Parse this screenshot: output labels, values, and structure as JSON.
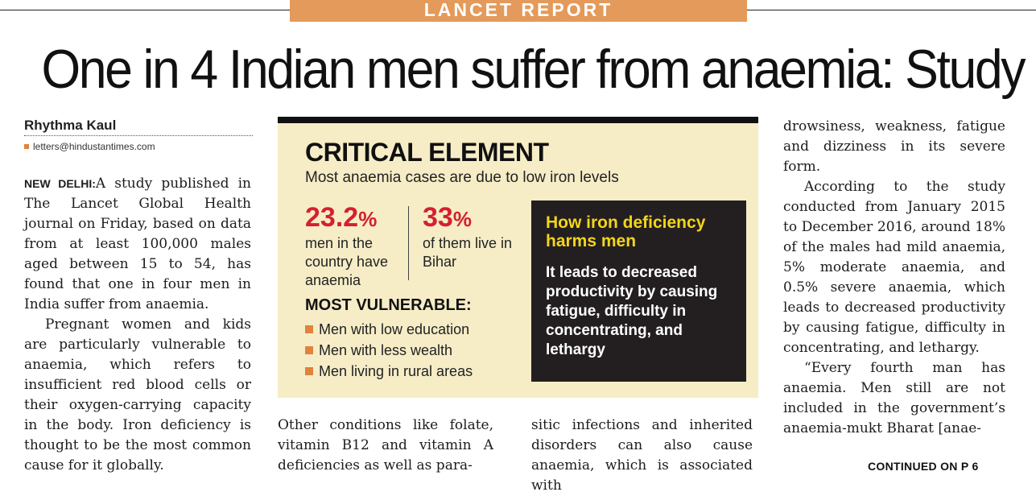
{
  "kicker": "LANCET REPORT",
  "headline": "One in 4 Indian men suffer from anaemia: Study",
  "byline": {
    "author": "Rhythma Kaul",
    "email": "letters@hindustantimes.com"
  },
  "body": {
    "dateline": "NEW DELHI:",
    "col1_p1": "A study published in The Lancet Global Health journal on Friday, based on data from at least 100,000 males aged between 15 to 54, has found that one in four men in India suffer from anaemia.",
    "col1_p2": "Pregnant women and kids are particularly vulnerable to anaemia, which refers to insufficient red blood cells or their oxygen-carrying capacity in the body. Iron deficiency is thought to be the most common cause for it globally.",
    "col2_p1": "Other conditions like folate, vitamin B12 and vitamin A deficiencies as well as para-",
    "col3_p1": "sitic infections and inherited disorders can also cause anaemia, which is associated with",
    "col4_p1": "drowsiness, weakness, fatigue and dizziness in its severe form.",
    "col4_p2": "According to the study conducted from January 2015 to December 2016, around 18% of the males had mild anaemia, 5% moderate anaemia, and 0.5% severe anaemia, which leads to decreased productivity by causing fatigue, difficulty in concentrating, and lethargy.",
    "col4_p3": "“Every fourth man has anaemia. Men still are not included in the government’s anaemia-mukt Bharat [anae-",
    "continued": "CONTINUED ON P 6"
  },
  "factbox": {
    "title": "CRITICAL ELEMENT",
    "subtitle": "Most anaemia cases are due to low iron levels",
    "stat1": {
      "value": "23.2",
      "unit": "%",
      "label": "men in the country have anaemia"
    },
    "stat2": {
      "value": "33",
      "unit": "%",
      "label": "of them live in Bihar"
    },
    "vulnerable_heading": "MOST VULNERABLE:",
    "vulnerable_items": [
      "Men with low education",
      "Men with less wealth",
      "Men living in rural areas"
    ],
    "harm_title": "How iron deficiency harms men",
    "harm_body": "It leads to decreased productivity by causing fatigue, difficulty in concentrating, and lethargy",
    "colors": {
      "accent_red": "#d4202f",
      "accent_orange": "#e1823d",
      "highlight_yellow": "#f2d51a",
      "box_bg": "#f6edc7"
    }
  }
}
